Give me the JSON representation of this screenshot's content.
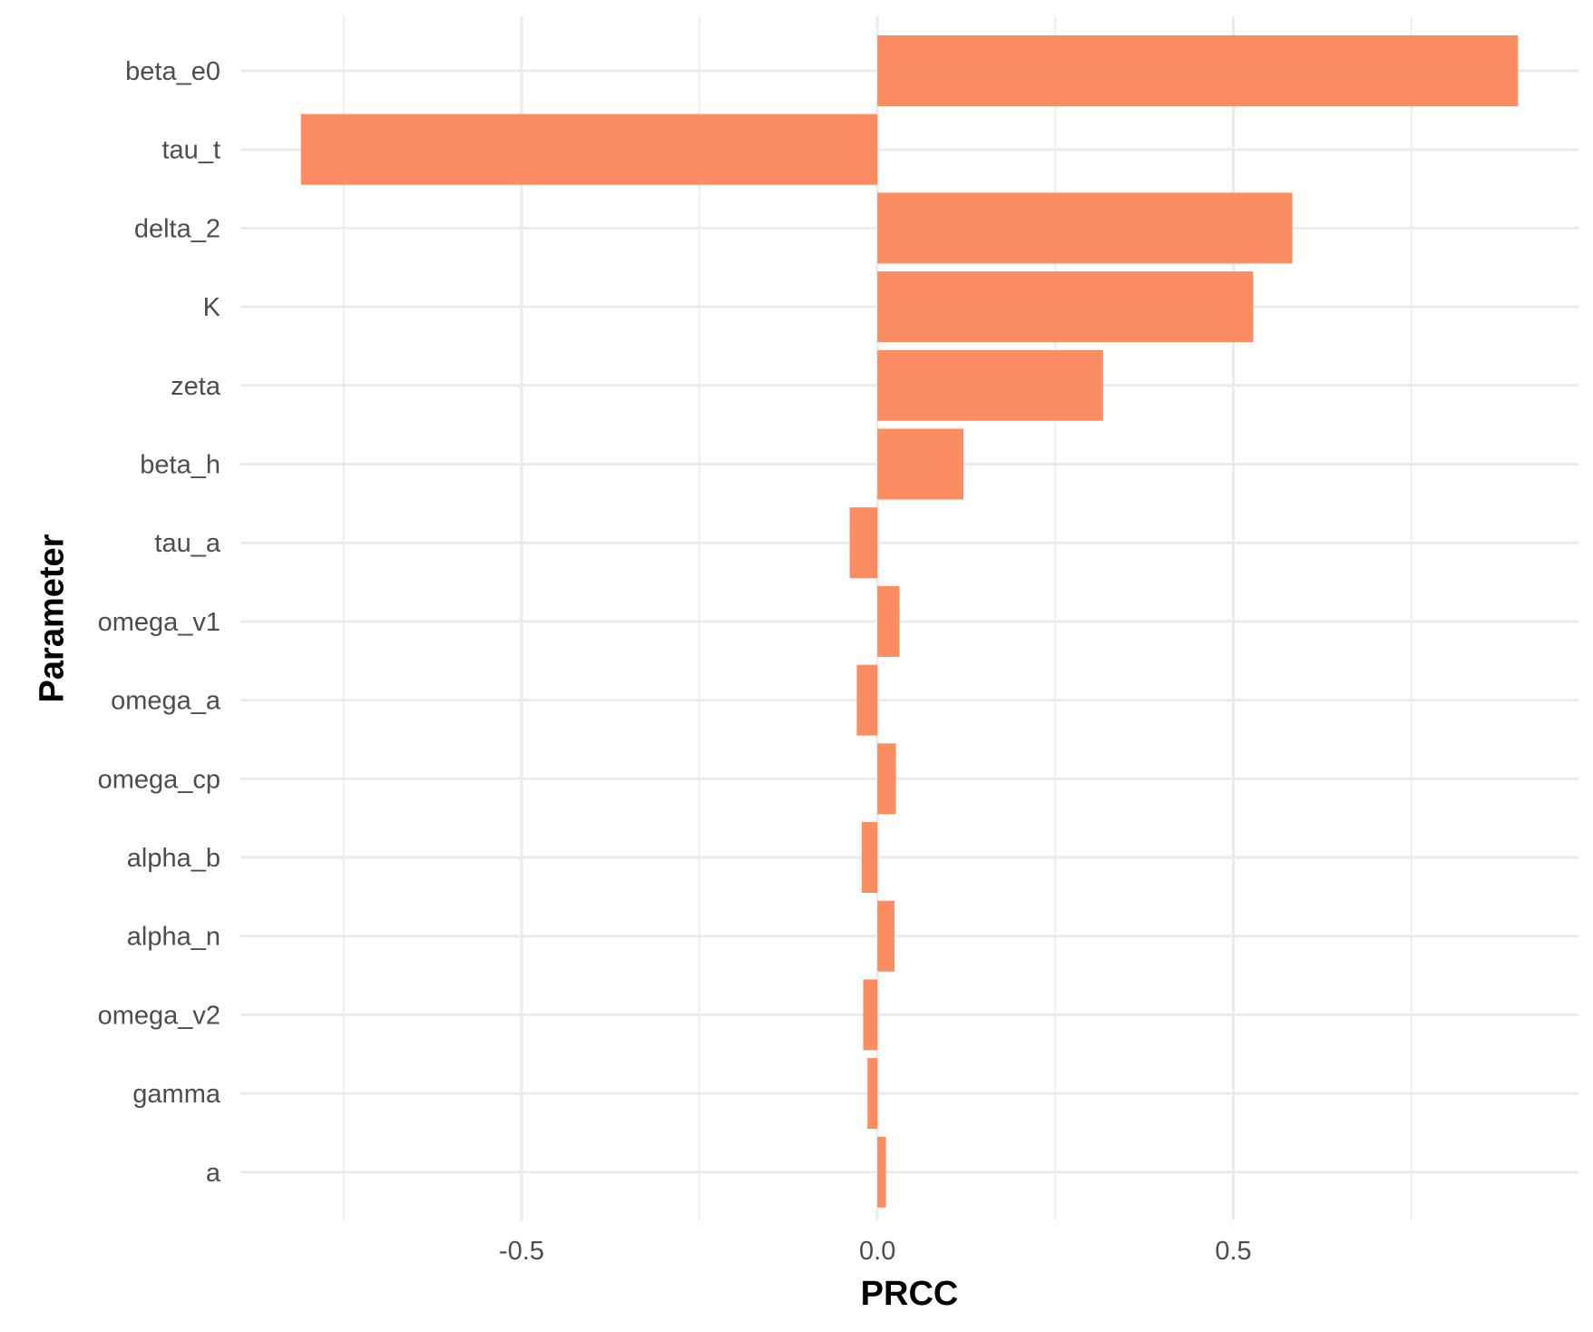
{
  "chart_data": {
    "type": "bar",
    "orientation": "horizontal",
    "xlabel": "PRCC",
    "ylabel": "Parameter",
    "categories": [
      "beta_e0",
      "tau_t",
      "delta_2",
      "K",
      "zeta",
      "beta_h",
      "tau_a",
      "omega_v1",
      "omega_a",
      "omega_cp",
      "alpha_b",
      "alpha_n",
      "omega_v2",
      "gamma",
      "a"
    ],
    "values": [
      0.9,
      -0.81,
      0.583,
      0.528,
      0.317,
      0.121,
      -0.039,
      0.031,
      -0.029,
      0.026,
      -0.022,
      0.024,
      -0.02,
      -0.014,
      0.012
    ],
    "xlim": [
      -0.895,
      0.985
    ],
    "x_ticks": [
      -0.5,
      0.0,
      0.5
    ],
    "x_tick_labels": [
      "-0.5",
      "0.0",
      "0.5"
    ],
    "x_minor_ticks": [
      -0.75,
      -0.25,
      0.25,
      0.75
    ],
    "grid": true,
    "legend": "none",
    "bar_color": "#fc8d62",
    "background_color": "#ffffff",
    "grid_color": "#ebebeb"
  }
}
